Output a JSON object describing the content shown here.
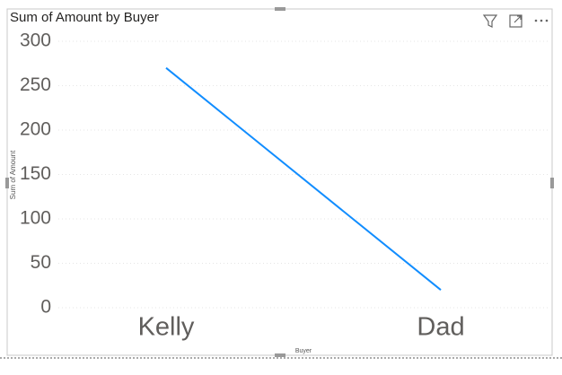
{
  "chart_data": {
    "type": "line",
    "title": "Sum of Amount by Buyer",
    "x_label": "Buyer",
    "y_label": "Sum of Amount",
    "categories": [
      "Kelly",
      "Dad"
    ],
    "series": [
      {
        "name": "Sum of Amount",
        "color": "#118dff",
        "values": [
          270,
          20
        ]
      }
    ],
    "ylim": [
      0,
      300
    ],
    "yticks": [
      0,
      50,
      100,
      150,
      200,
      250,
      300
    ],
    "grid": true
  }
}
